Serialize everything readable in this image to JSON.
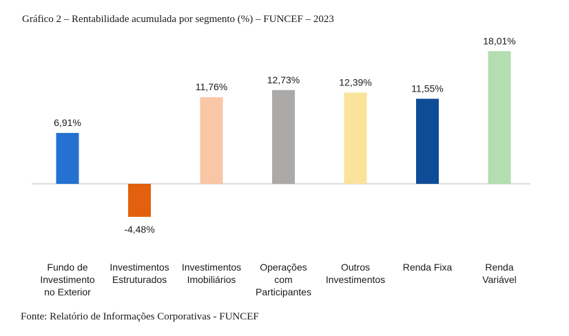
{
  "title": "Gráfico 2 – Rentabilidade acumulada por segmento (%) – FUNCEF – 2023",
  "source": "Fonte: Relatório de Informações Corporativas - FUNCEF",
  "chart_data": {
    "type": "bar",
    "title": "Gráfico 2 – Rentabilidade acumulada por segmento (%) – FUNCEF – 2023",
    "categories": [
      [
        "Fundo de",
        "Investimento",
        "no Exterior"
      ],
      [
        "Investimentos",
        "Estruturados"
      ],
      [
        "Investimentos",
        "Imobiliários"
      ],
      [
        "Operações",
        "com",
        "Participantes"
      ],
      [
        "Outros",
        "Investimentos"
      ],
      [
        "Renda Fixa"
      ],
      [
        "Renda",
        "Variável"
      ]
    ],
    "values": [
      6.91,
      -4.48,
      11.76,
      12.73,
      12.39,
      11.55,
      18.01
    ],
    "value_labels": [
      "6,91%",
      "-4,48%",
      "11,76%",
      "12,73%",
      "12,39%",
      "11,55%",
      "18,01%"
    ],
    "colors": [
      "#2471d1",
      "#e2600e",
      "#f9c6a6",
      "#aca9a9",
      "#fbe39b",
      "#0f4c97",
      "#b3deb1"
    ],
    "axis_color": "#d0d0d0",
    "grid": false,
    "legend": "none"
  }
}
